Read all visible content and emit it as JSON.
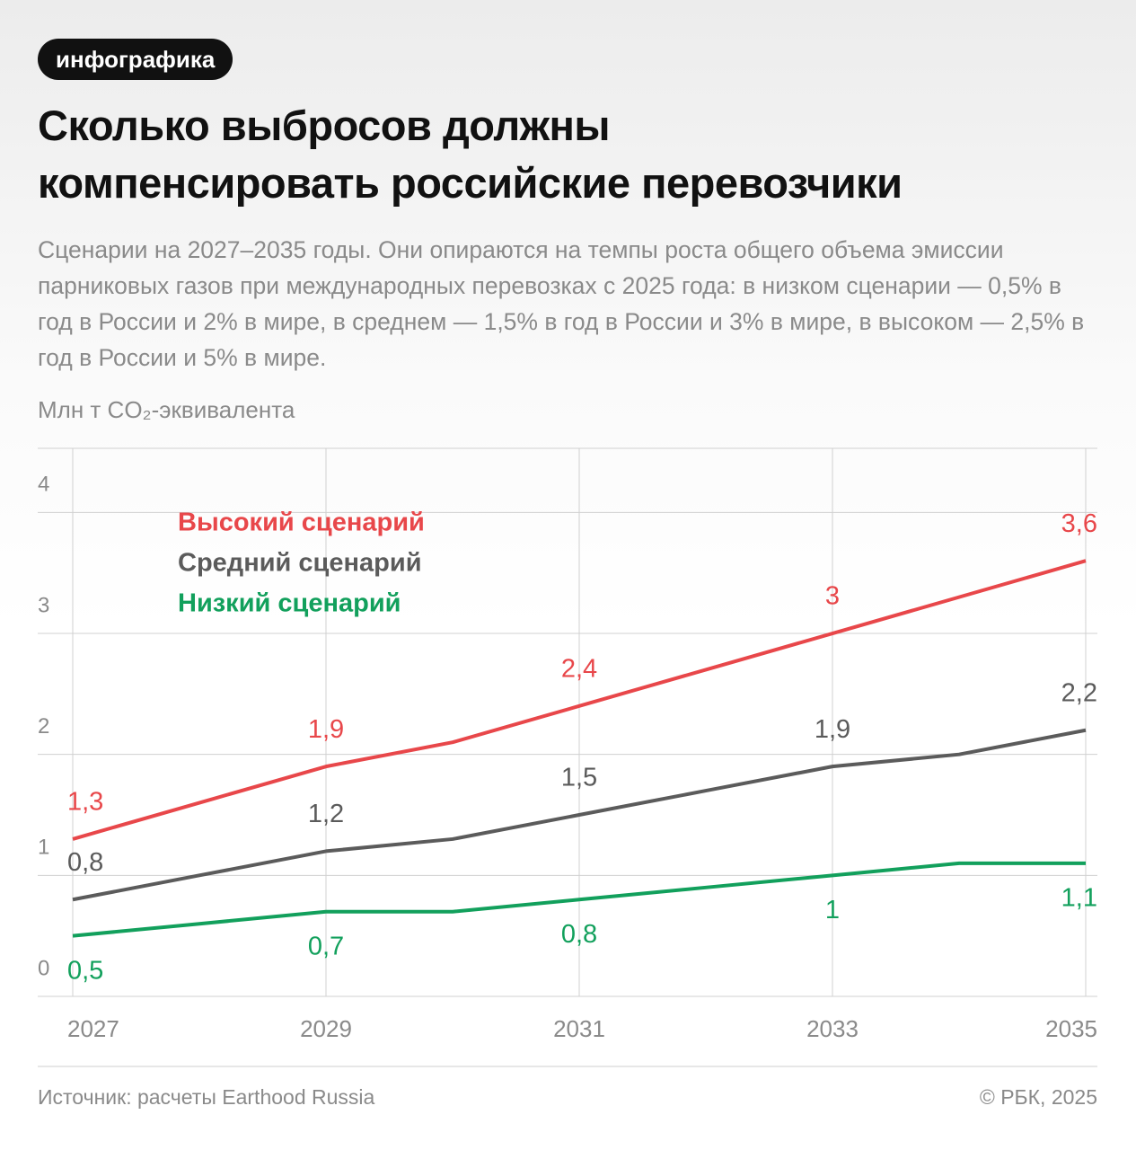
{
  "badge": "инфографика",
  "chart_data": {
    "type": "line",
    "title": [
      "Сколько выбросов должны",
      "компенсировать российские перевозчики"
    ],
    "subtitle": "Сценарии на 2027–2035 годы. Они опираются на темпы роста общего объема эмиссии парниковых газов при международных перевозках с 2025 года: в низком сценарии — 0,5% в год в России и 2% в мире, в среднем — 1,5% в год в России и 3% в мире, в высоком — 2,5% в год в России и 5% в мире.",
    "y_label": "Млн т CO₂-эквивалента",
    "x": [
      2027,
      2028,
      2029,
      2030,
      2031,
      2032,
      2033,
      2034,
      2035
    ],
    "series": [
      {
        "name": "Высокий сценарий",
        "color": "#e8474a",
        "values": [
          1.3,
          1.6,
          1.9,
          2.1,
          2.4,
          2.7,
          3.0,
          3.3,
          3.6
        ],
        "value_labels": [
          "1,3",
          null,
          "1,9",
          null,
          "2,4",
          null,
          "3",
          null,
          "3,6"
        ]
      },
      {
        "name": "Средний сценарий",
        "color": "#5b5b5b",
        "values": [
          0.8,
          1.0,
          1.2,
          1.3,
          1.5,
          1.7,
          1.9,
          2.0,
          2.2
        ],
        "value_labels": [
          "0,8",
          null,
          "1,2",
          null,
          "1,5",
          null,
          "1,9",
          null,
          "2,2"
        ]
      },
      {
        "name": "Низкий сценарий",
        "color": "#12a05c",
        "values": [
          0.5,
          0.6,
          0.7,
          0.7,
          0.8,
          0.9,
          1.0,
          1.1,
          1.1
        ],
        "value_labels": [
          "0,5",
          null,
          "0,7",
          null,
          "0,8",
          null,
          "1",
          null,
          "1,1"
        ]
      }
    ],
    "xlim": [
      2027,
      2035
    ],
    "xticks": [
      2027,
      2029,
      2031,
      2033,
      2035
    ],
    "ylim": [
      0,
      4.53
    ],
    "yticks": [
      0,
      1,
      2,
      3,
      4
    ],
    "grid": true,
    "legend": "upper left",
    "source": "Источник: расчеты Earthood Russia",
    "credit": "© РБК, 2025"
  }
}
